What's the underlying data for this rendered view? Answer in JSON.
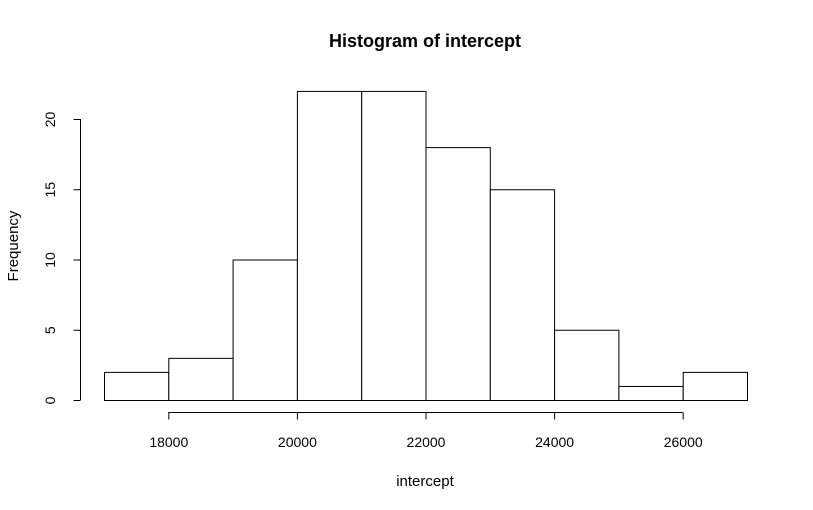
{
  "chart_data": {
    "type": "bar",
    "title": "Histogram of intercept",
    "xlabel": "intercept",
    "ylabel": "Frequency",
    "bins": [
      {
        "start": 17000,
        "end": 18000,
        "count": 2
      },
      {
        "start": 18000,
        "end": 19000,
        "count": 3
      },
      {
        "start": 19000,
        "end": 20000,
        "count": 10
      },
      {
        "start": 20000,
        "end": 21000,
        "count": 22
      },
      {
        "start": 21000,
        "end": 22000,
        "count": 22
      },
      {
        "start": 22000,
        "end": 23000,
        "count": 18
      },
      {
        "start": 23000,
        "end": 24000,
        "count": 15
      },
      {
        "start": 24000,
        "end": 25000,
        "count": 5
      },
      {
        "start": 25000,
        "end": 26000,
        "count": 1
      },
      {
        "start": 26000,
        "end": 27000,
        "count": 2
      }
    ],
    "xticks": [
      "18000",
      "20000",
      "22000",
      "24000",
      "26000"
    ],
    "yticks": [
      "0",
      "5",
      "10",
      "15",
      "20"
    ],
    "xlim": [
      17000,
      27000
    ],
    "ylim": [
      0,
      22
    ],
    "grid": false,
    "colors": {
      "bar_fill": "#ffffff",
      "bar_stroke": "#000000"
    }
  }
}
